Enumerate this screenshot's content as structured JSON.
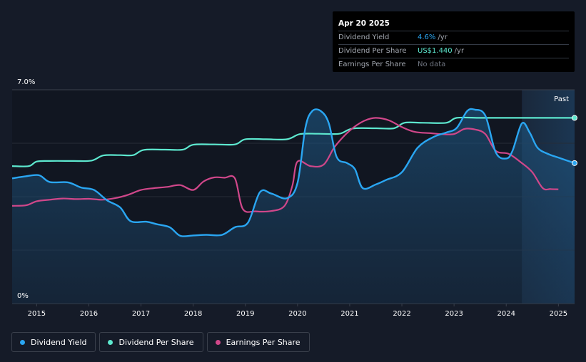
{
  "tooltip": {
    "date": "Apr 20 2025",
    "rows": [
      {
        "label": "Dividend Yield",
        "value": "4.6%",
        "unit": "/yr"
      },
      {
        "label": "Dividend Per Share",
        "value": "US$1.440",
        "unit": "/yr"
      },
      {
        "label": "Earnings Per Share",
        "value": "No data",
        "unit": ""
      }
    ]
  },
  "past_label": "Past",
  "legend": [
    {
      "label": "Dividend Yield",
      "color": "#2aa6f2"
    },
    {
      "label": "Dividend Per Share",
      "color": "#5de8cf"
    },
    {
      "label": "Earnings Per Share",
      "color": "#d0478a"
    }
  ],
  "colors": {
    "background": "#151b28",
    "yield": "#2aa6f2",
    "dps": "#5de8cf",
    "eps": "#d0478a"
  },
  "chart_data": {
    "type": "line",
    "title": "",
    "xlabel": "",
    "ylabel": "",
    "y_ticks": [
      "7.0%",
      "0%"
    ],
    "ylim": [
      0,
      7.0
    ],
    "xlim": [
      2014.53,
      2025.31
    ],
    "x_ticks": [
      "2015",
      "2016",
      "2017",
      "2018",
      "2019",
      "2020",
      "2021",
      "2022",
      "2023",
      "2024",
      "2025"
    ],
    "grid": true,
    "legend_position": "bottom-left",
    "past_region_start": 2024.3,
    "series": [
      {
        "name": "Dividend Yield",
        "axis": "percent",
        "area": true,
        "points": [
          [
            2014.53,
            4.1
          ],
          [
            2014.8,
            4.17
          ],
          [
            2015.05,
            4.2
          ],
          [
            2015.25,
            3.98
          ],
          [
            2015.6,
            3.97
          ],
          [
            2015.85,
            3.8
          ],
          [
            2016.1,
            3.72
          ],
          [
            2016.35,
            3.38
          ],
          [
            2016.6,
            3.15
          ],
          [
            2016.8,
            2.7
          ],
          [
            2017.1,
            2.68
          ],
          [
            2017.3,
            2.6
          ],
          [
            2017.55,
            2.5
          ],
          [
            2017.75,
            2.22
          ],
          [
            2018.0,
            2.23
          ],
          [
            2018.25,
            2.25
          ],
          [
            2018.55,
            2.25
          ],
          [
            2018.8,
            2.5
          ],
          [
            2019.05,
            2.65
          ],
          [
            2019.28,
            3.65
          ],
          [
            2019.5,
            3.6
          ],
          [
            2019.8,
            3.45
          ],
          [
            2020.0,
            3.95
          ],
          [
            2020.15,
            5.75
          ],
          [
            2020.28,
            6.3
          ],
          [
            2020.45,
            6.3
          ],
          [
            2020.6,
            5.9
          ],
          [
            2020.75,
            4.8
          ],
          [
            2020.95,
            4.6
          ],
          [
            2021.1,
            4.4
          ],
          [
            2021.25,
            3.78
          ],
          [
            2021.5,
            3.9
          ],
          [
            2021.7,
            4.05
          ],
          [
            2022.0,
            4.3
          ],
          [
            2022.3,
            5.1
          ],
          [
            2022.6,
            5.45
          ],
          [
            2022.85,
            5.6
          ],
          [
            2023.05,
            5.75
          ],
          [
            2023.25,
            6.3
          ],
          [
            2023.4,
            6.35
          ],
          [
            2023.6,
            6.15
          ],
          [
            2023.8,
            4.95
          ],
          [
            2024.0,
            4.75
          ],
          [
            2024.12,
            5.0
          ],
          [
            2024.3,
            5.9
          ],
          [
            2024.45,
            5.6
          ],
          [
            2024.6,
            5.1
          ],
          [
            2024.8,
            4.9
          ],
          [
            2025.0,
            4.78
          ],
          [
            2025.31,
            4.6
          ]
        ]
      },
      {
        "name": "Dividend Per Share",
        "axis": "dps_scale",
        "points": [
          [
            2014.53,
            4.5
          ],
          [
            2014.85,
            4.5
          ],
          [
            2015.0,
            4.65
          ],
          [
            2015.25,
            4.67
          ],
          [
            2015.7,
            4.67
          ],
          [
            2016.05,
            4.68
          ],
          [
            2016.28,
            4.85
          ],
          [
            2016.6,
            4.86
          ],
          [
            2016.85,
            4.86
          ],
          [
            2017.05,
            5.03
          ],
          [
            2017.45,
            5.04
          ],
          [
            2017.8,
            5.04
          ],
          [
            2018.0,
            5.2
          ],
          [
            2018.4,
            5.21
          ],
          [
            2018.8,
            5.21
          ],
          [
            2019.0,
            5.38
          ],
          [
            2019.4,
            5.38
          ],
          [
            2019.8,
            5.38
          ],
          [
            2020.05,
            5.55
          ],
          [
            2020.4,
            5.56
          ],
          [
            2020.8,
            5.56
          ],
          [
            2021.05,
            5.73
          ],
          [
            2021.5,
            5.74
          ],
          [
            2021.85,
            5.74
          ],
          [
            2022.05,
            5.92
          ],
          [
            2022.4,
            5.92
          ],
          [
            2022.85,
            5.92
          ],
          [
            2023.05,
            6.08
          ],
          [
            2023.5,
            6.08
          ],
          [
            2024.0,
            6.08
          ],
          [
            2024.5,
            6.08
          ],
          [
            2025.31,
            6.08
          ]
        ]
      },
      {
        "name": "Earnings Per Share",
        "axis": "eps_scale",
        "points": [
          [
            2014.53,
            3.2
          ],
          [
            2014.8,
            3.22
          ],
          [
            2015.0,
            3.35
          ],
          [
            2015.25,
            3.4
          ],
          [
            2015.5,
            3.44
          ],
          [
            2015.75,
            3.42
          ],
          [
            2016.0,
            3.43
          ],
          [
            2016.25,
            3.4
          ],
          [
            2016.5,
            3.45
          ],
          [
            2016.75,
            3.56
          ],
          [
            2017.0,
            3.72
          ],
          [
            2017.25,
            3.78
          ],
          [
            2017.5,
            3.82
          ],
          [
            2017.75,
            3.88
          ],
          [
            2018.0,
            3.72
          ],
          [
            2018.2,
            4.0
          ],
          [
            2018.4,
            4.13
          ],
          [
            2018.6,
            4.12
          ],
          [
            2018.8,
            4.1
          ],
          [
            2018.95,
            3.1
          ],
          [
            2019.2,
            3.02
          ],
          [
            2019.5,
            3.03
          ],
          [
            2019.75,
            3.2
          ],
          [
            2019.9,
            3.85
          ],
          [
            2020.0,
            4.65
          ],
          [
            2020.25,
            4.5
          ],
          [
            2020.5,
            4.55
          ],
          [
            2020.7,
            5.1
          ],
          [
            2020.9,
            5.5
          ],
          [
            2021.1,
            5.8
          ],
          [
            2021.3,
            6.0
          ],
          [
            2021.5,
            6.08
          ],
          [
            2021.75,
            6.0
          ],
          [
            2022.0,
            5.78
          ],
          [
            2022.25,
            5.62
          ],
          [
            2022.55,
            5.58
          ],
          [
            2022.75,
            5.55
          ],
          [
            2023.0,
            5.55
          ],
          [
            2023.2,
            5.72
          ],
          [
            2023.4,
            5.7
          ],
          [
            2023.6,
            5.55
          ],
          [
            2023.8,
            5.0
          ],
          [
            2024.05,
            4.9
          ],
          [
            2024.3,
            4.6
          ],
          [
            2024.5,
            4.3
          ],
          [
            2024.7,
            3.78
          ],
          [
            2024.85,
            3.75
          ],
          [
            2025.0,
            3.74
          ]
        ]
      }
    ]
  }
}
